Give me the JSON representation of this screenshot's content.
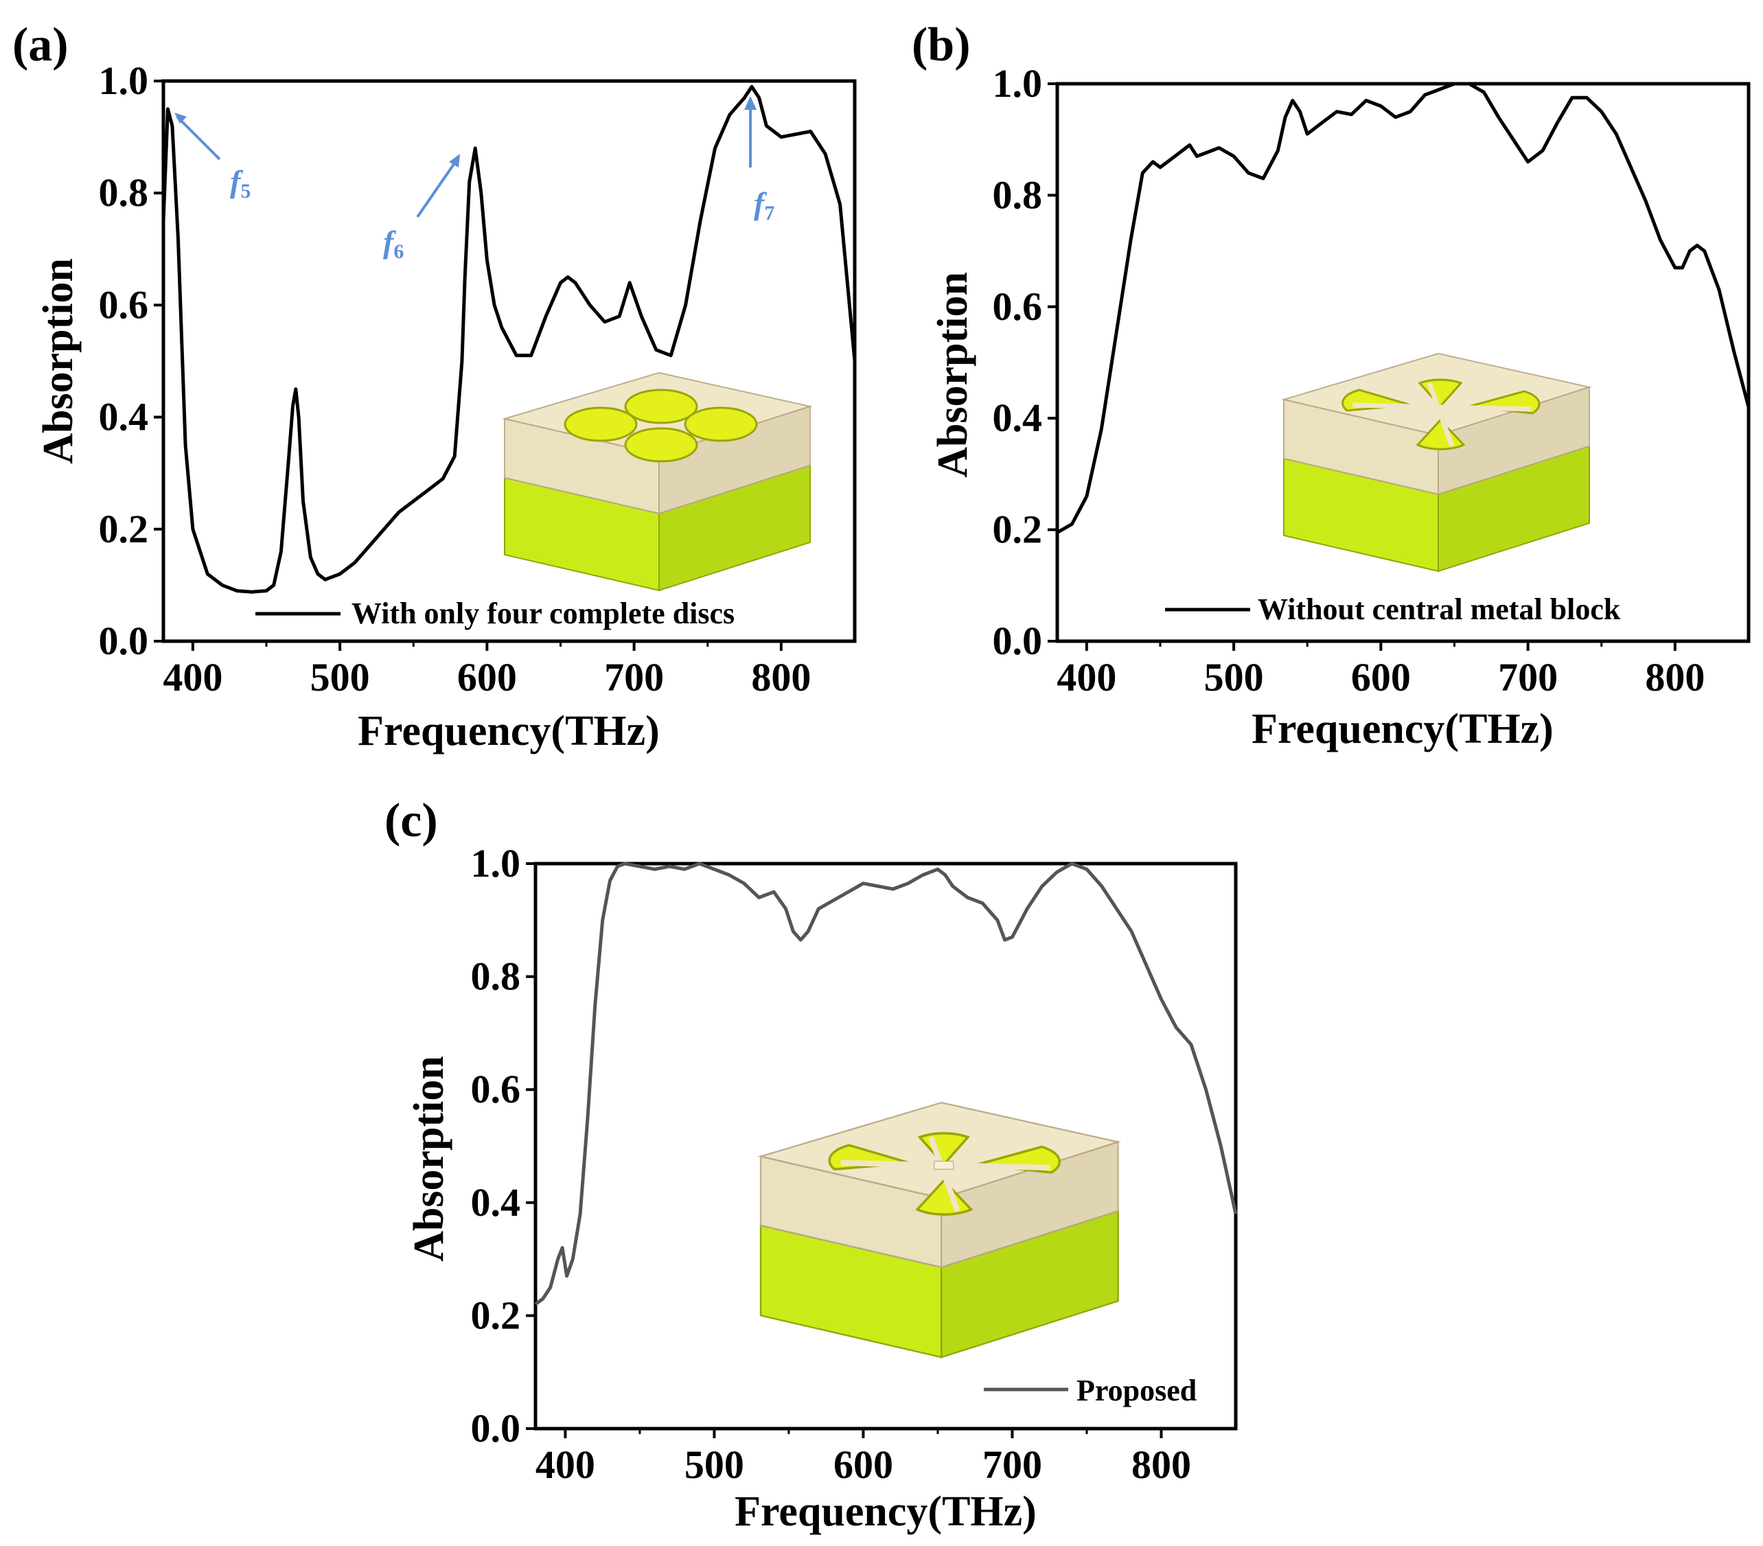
{
  "chart_data": [
    {
      "type": "line",
      "panel_label": "(a)",
      "xlabel": "Frequency(THz)",
      "ylabel": "Absorption",
      "xlim": [
        380,
        850
      ],
      "ylim": [
        0.0,
        1.0
      ],
      "xticks": [
        "400",
        "500",
        "600",
        "700",
        "800"
      ],
      "yticks": [
        "0.0",
        "0.2",
        "0.4",
        "0.6",
        "0.8",
        "1.0"
      ],
      "legend_position": "bottom-right",
      "series": [
        {
          "name": "With only four complete discs",
          "color": "#000000",
          "x": [
            380,
            383,
            386,
            390,
            395,
            400,
            410,
            420,
            430,
            440,
            450,
            455,
            460,
            465,
            468,
            470,
            472,
            475,
            480,
            485,
            490,
            500,
            510,
            520,
            530,
            540,
            550,
            560,
            570,
            578,
            583,
            585,
            588,
            592,
            596,
            600,
            605,
            610,
            620,
            630,
            640,
            650,
            655,
            660,
            670,
            680,
            690,
            697,
            705,
            715,
            725,
            735,
            745,
            755,
            765,
            775,
            780,
            785,
            790,
            800,
            810,
            820,
            830,
            840,
            850
          ],
          "y": [
            0.75,
            0.95,
            0.92,
            0.72,
            0.35,
            0.2,
            0.12,
            0.1,
            0.09,
            0.088,
            0.09,
            0.1,
            0.16,
            0.32,
            0.42,
            0.45,
            0.4,
            0.25,
            0.15,
            0.12,
            0.11,
            0.12,
            0.14,
            0.17,
            0.2,
            0.23,
            0.25,
            0.27,
            0.29,
            0.33,
            0.5,
            0.65,
            0.82,
            0.88,
            0.8,
            0.68,
            0.6,
            0.56,
            0.51,
            0.51,
            0.58,
            0.64,
            0.65,
            0.64,
            0.6,
            0.57,
            0.58,
            0.64,
            0.58,
            0.52,
            0.51,
            0.6,
            0.75,
            0.88,
            0.94,
            0.97,
            0.99,
            0.97,
            0.92,
            0.9,
            0.905,
            0.91,
            0.87,
            0.78,
            0.5
          ]
        }
      ],
      "annotations": [
        {
          "label": "f",
          "sub": "5",
          "at_x": 383,
          "at_y": 0.95
        },
        {
          "label": "f",
          "sub": "6",
          "at_x": 590,
          "at_y": 0.87
        },
        {
          "label": "f",
          "sub": "7",
          "at_x": 780,
          "at_y": 0.99
        }
      ]
    },
    {
      "type": "line",
      "panel_label": "(b)",
      "xlabel": "Frequency(THz)",
      "ylabel": "Absorption",
      "xlim": [
        380,
        850
      ],
      "ylim": [
        0.0,
        1.0
      ],
      "xticks": [
        "400",
        "500",
        "600",
        "700",
        "800"
      ],
      "yticks": [
        "0.0",
        "0.2",
        "0.4",
        "0.6",
        "0.8",
        "1.0"
      ],
      "legend_position": "bottom-right",
      "series": [
        {
          "name": "Without central metal block",
          "color": "#000000",
          "x": [
            380,
            390,
            400,
            410,
            420,
            430,
            438,
            445,
            450,
            460,
            470,
            475,
            480,
            490,
            500,
            510,
            520,
            530,
            535,
            540,
            545,
            550,
            560,
            570,
            580,
            590,
            600,
            610,
            620,
            630,
            640,
            650,
            660,
            670,
            680,
            690,
            700,
            710,
            720,
            730,
            740,
            750,
            760,
            770,
            780,
            790,
            800,
            805,
            810,
            815,
            820,
            830,
            840,
            850
          ],
          "y": [
            0.195,
            0.21,
            0.26,
            0.38,
            0.55,
            0.72,
            0.84,
            0.86,
            0.85,
            0.87,
            0.89,
            0.87,
            0.875,
            0.885,
            0.87,
            0.84,
            0.83,
            0.88,
            0.94,
            0.97,
            0.95,
            0.91,
            0.93,
            0.95,
            0.945,
            0.97,
            0.96,
            0.94,
            0.95,
            0.98,
            0.99,
            1.0,
            1.0,
            0.985,
            0.94,
            0.9,
            0.86,
            0.88,
            0.93,
            0.975,
            0.975,
            0.95,
            0.91,
            0.85,
            0.79,
            0.72,
            0.67,
            0.67,
            0.7,
            0.71,
            0.7,
            0.63,
            0.52,
            0.42
          ]
        }
      ]
    },
    {
      "type": "line",
      "panel_label": "(c)",
      "xlabel": "Frequency(THz)",
      "ylabel": "Absorption",
      "xlim": [
        380,
        850
      ],
      "ylim": [
        0.0,
        1.0
      ],
      "xticks": [
        "400",
        "500",
        "600",
        "700",
        "800"
      ],
      "yticks": [
        "0.0",
        "0.2",
        "0.4",
        "0.6",
        "0.8",
        "1.0"
      ],
      "legend_position": "bottom-right",
      "series": [
        {
          "name": "Proposed",
          "color": "#555555",
          "x": [
            380,
            385,
            390,
            395,
            398,
            401,
            405,
            410,
            415,
            420,
            425,
            430,
            435,
            440,
            450,
            460,
            470,
            480,
            490,
            500,
            510,
            520,
            530,
            540,
            548,
            553,
            558,
            563,
            570,
            580,
            590,
            600,
            610,
            620,
            630,
            640,
            650,
            655,
            660,
            670,
            680,
            690,
            695,
            700,
            710,
            720,
            730,
            740,
            750,
            760,
            770,
            780,
            790,
            800,
            810,
            820,
            830,
            840,
            850
          ],
          "y": [
            0.22,
            0.23,
            0.25,
            0.3,
            0.32,
            0.27,
            0.3,
            0.38,
            0.55,
            0.75,
            0.9,
            0.97,
            0.995,
            1.0,
            0.995,
            0.99,
            0.995,
            0.99,
            1.0,
            0.99,
            0.98,
            0.965,
            0.94,
            0.95,
            0.92,
            0.88,
            0.865,
            0.88,
            0.92,
            0.935,
            0.95,
            0.965,
            0.96,
            0.955,
            0.965,
            0.98,
            0.99,
            0.98,
            0.96,
            0.94,
            0.93,
            0.9,
            0.865,
            0.87,
            0.92,
            0.96,
            0.985,
            1.0,
            0.99,
            0.96,
            0.92,
            0.88,
            0.82,
            0.76,
            0.71,
            0.68,
            0.6,
            0.5,
            0.38
          ]
        }
      ]
    }
  ]
}
